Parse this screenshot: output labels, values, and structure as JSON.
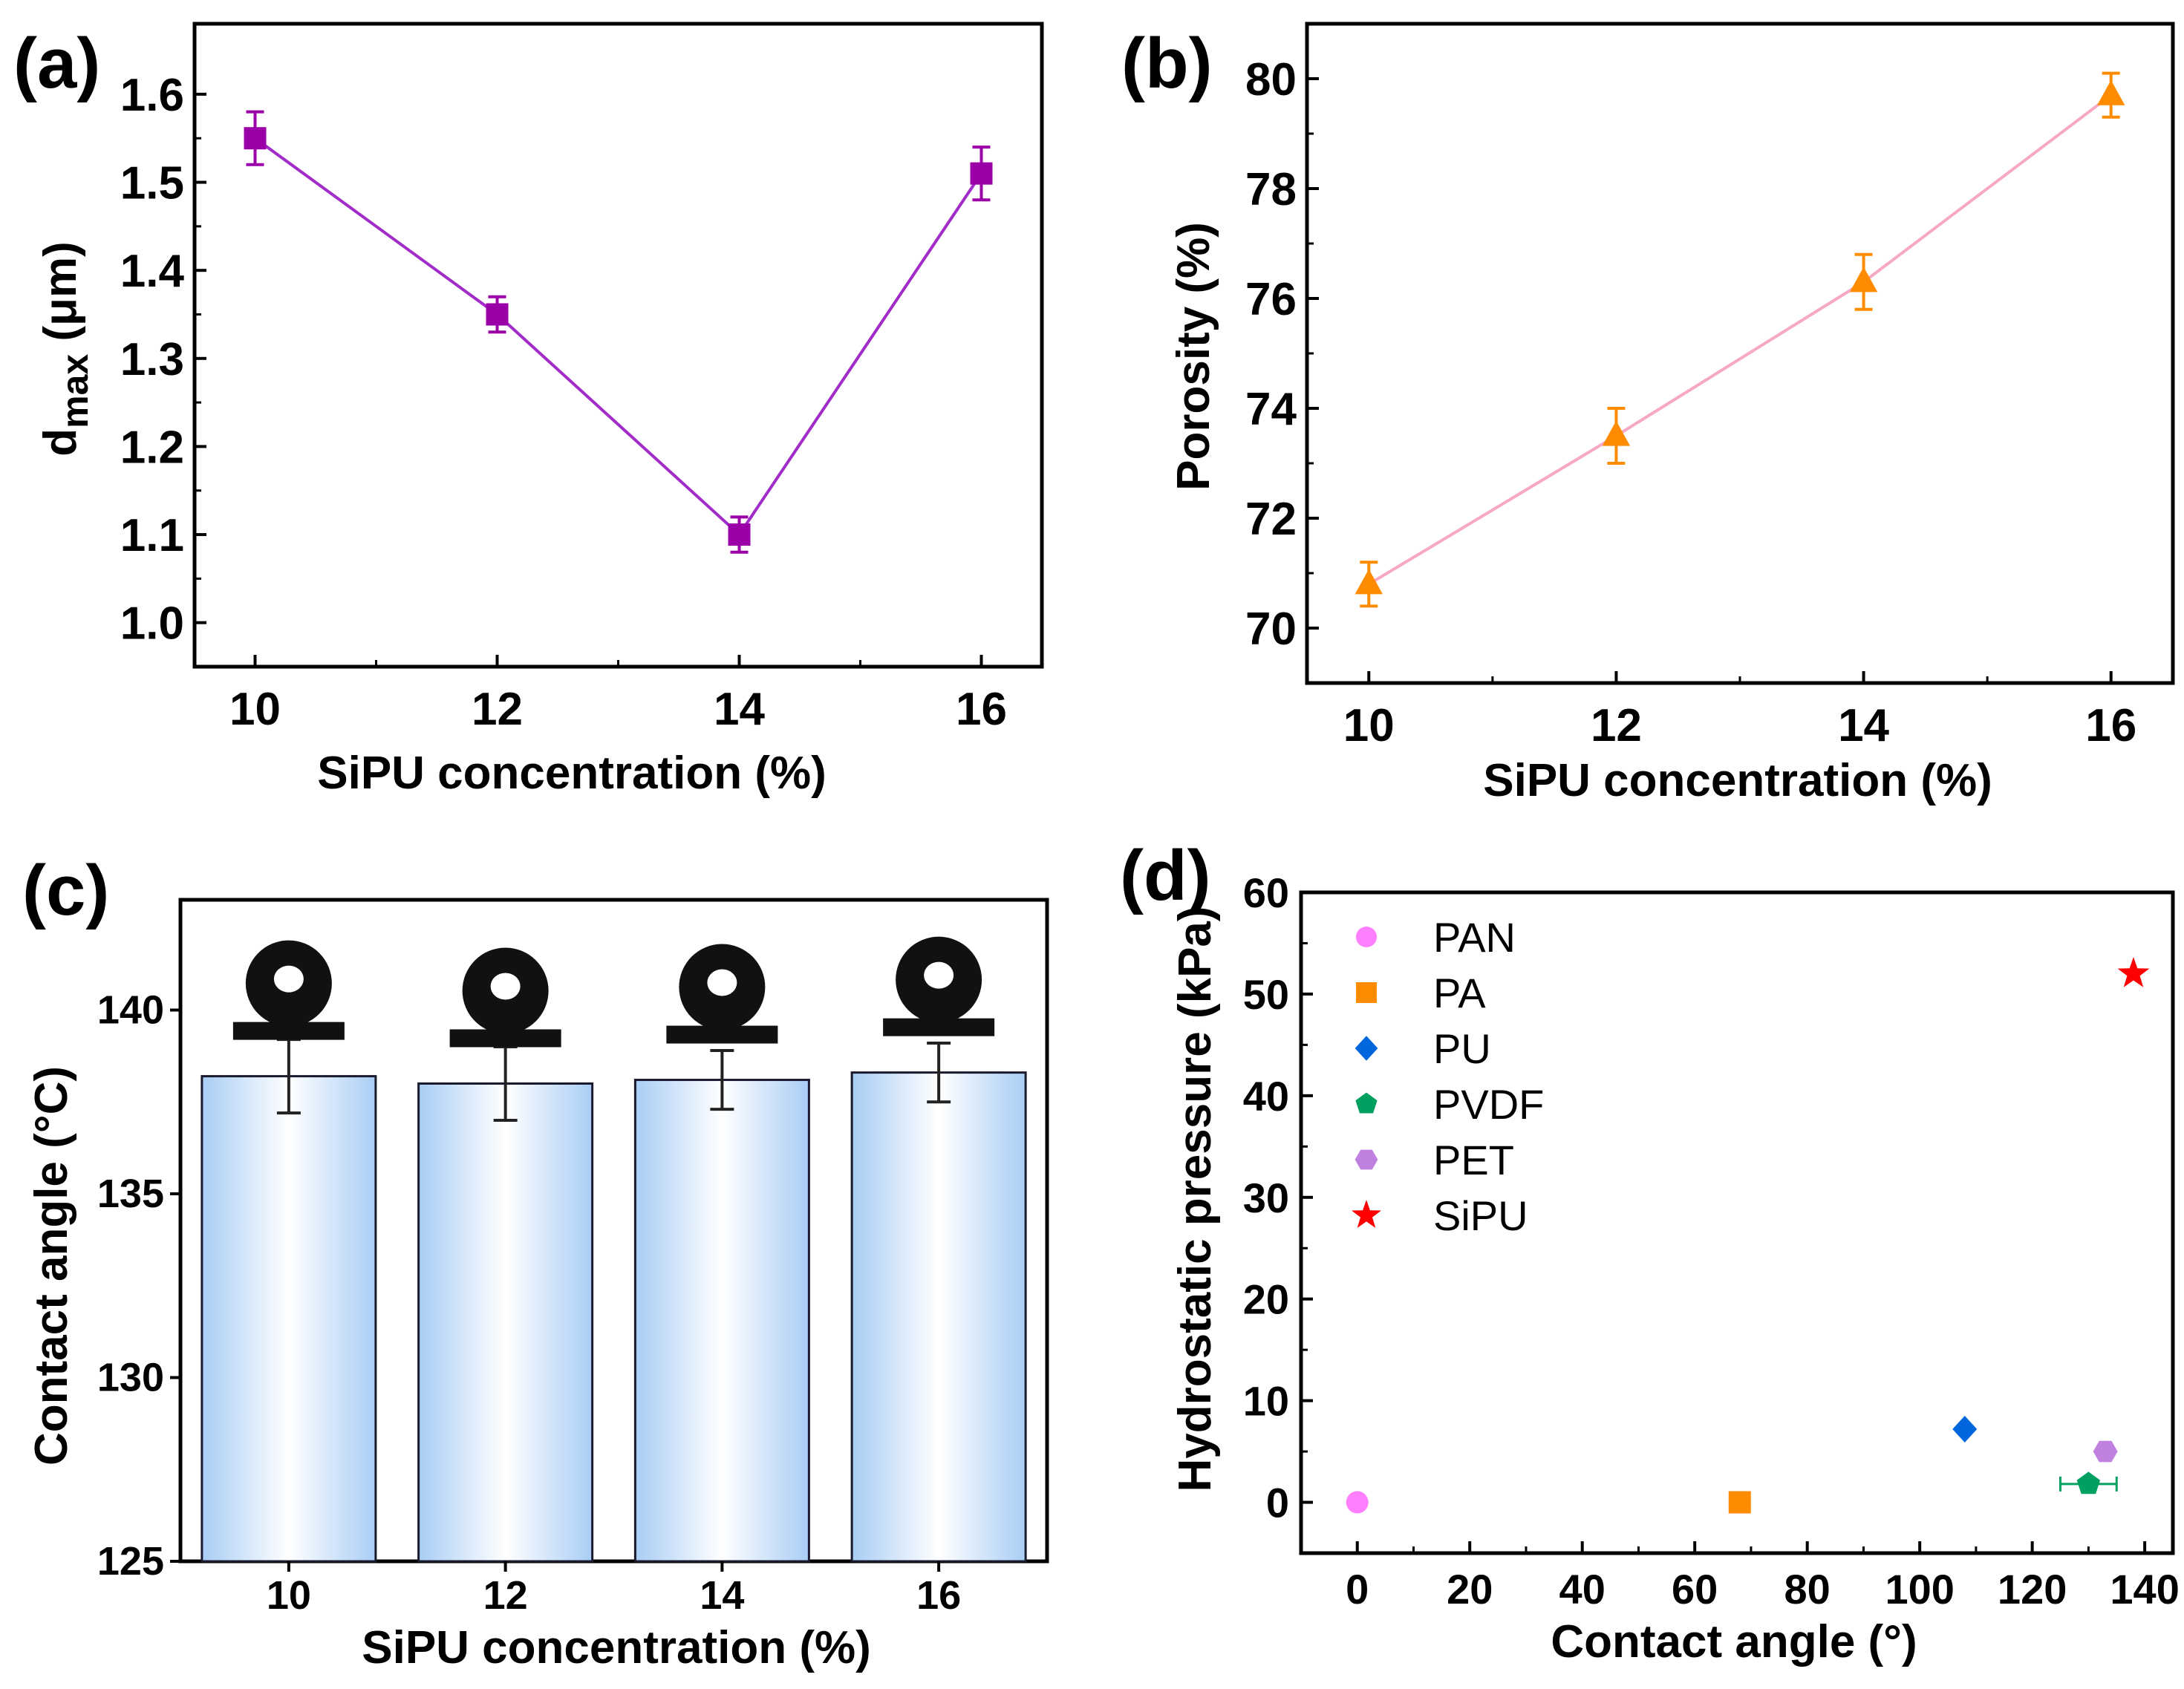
{
  "chart_data": [
    {
      "panel": "(a)",
      "type": "line",
      "x": [
        10,
        12,
        14,
        16
      ],
      "y": [
        1.55,
        1.35,
        1.1,
        1.51
      ],
      "error": [
        0.03,
        0.02,
        0.02,
        0.03
      ],
      "color": "#9b00a8",
      "line_color": "#a22cc8",
      "marker": "square",
      "xlabel": "SiPU concentration (%)",
      "ylabel_main": "d",
      "ylabel_sub": "max",
      "ylabel_unit": " (μm)",
      "xlim": [
        9.5,
        16.5
      ],
      "ylim": [
        0.95,
        1.68
      ],
      "xticks": [
        "10",
        "12",
        "14",
        "16"
      ],
      "yticks": [
        "1.0",
        "1.1",
        "1.2",
        "1.3",
        "1.4",
        "1.5",
        "1.6"
      ]
    },
    {
      "panel": "(b)",
      "type": "line",
      "x": [
        10,
        12,
        14,
        16
      ],
      "y": [
        70.8,
        73.5,
        76.3,
        79.7
      ],
      "error": [
        0.4,
        0.5,
        0.5,
        0.4
      ],
      "color": "#ff8c00",
      "line_color": "#f7a8c4",
      "marker": "triangle",
      "xlabel": "SiPU concentration (%)",
      "ylabel": "Porosity (%)",
      "xlim": [
        9.5,
        16.5
      ],
      "ylim": [
        69.0,
        81.0
      ],
      "xticks": [
        "10",
        "12",
        "14",
        "16"
      ],
      "yticks": [
        "70",
        "72",
        "74",
        "76",
        "78",
        "80"
      ]
    },
    {
      "panel": "(c)",
      "type": "bar",
      "categories": [
        "10",
        "12",
        "14",
        "16"
      ],
      "values": [
        138.2,
        138.0,
        138.1,
        138.3
      ],
      "error": [
        1.0,
        1.0,
        0.8,
        0.8
      ],
      "xlabel": "SiPU concentration (%)",
      "ylabel": "Contact angle (°C)",
      "ylim": [
        125,
        143
      ],
      "yticks": [
        "125",
        "130",
        "135",
        "140"
      ],
      "bar_edge": "#1a1a2e",
      "bar_center": "#ffffff",
      "bar_side": "#a9cdf5",
      "droplet_color": "#111111"
    },
    {
      "panel": "(d)",
      "type": "scatter",
      "xlabel": "Contact angle (°)",
      "ylabel": "Hydrostatic pressure (kPa)",
      "xlim": [
        -10,
        145
      ],
      "ylim": [
        -5,
        60
      ],
      "xticks": [
        "0",
        "20",
        "40",
        "60",
        "80",
        "100",
        "120",
        "140"
      ],
      "yticks": [
        "0",
        "10",
        "20",
        "30",
        "40",
        "50",
        "60"
      ],
      "series": [
        {
          "name": "PAN",
          "x": 0,
          "y": 0,
          "color": "#ff80ff",
          "marker": "circle"
        },
        {
          "name": "PA",
          "x": 68,
          "y": 0,
          "color": "#ff8c00",
          "marker": "square"
        },
        {
          "name": "PU",
          "x": 108,
          "y": 7.2,
          "color": "#0066dd",
          "marker": "diamond"
        },
        {
          "name": "PVDF",
          "x": 130,
          "y": 1.8,
          "color": "#00a060",
          "marker": "pentagon",
          "xerr": 5
        },
        {
          "name": "PET",
          "x": 133,
          "y": 5,
          "color": "#c080e0",
          "marker": "hexagon"
        },
        {
          "name": "SiPU",
          "x": 138,
          "y": 52,
          "color": "#ff0000",
          "marker": "star"
        }
      ]
    }
  ]
}
